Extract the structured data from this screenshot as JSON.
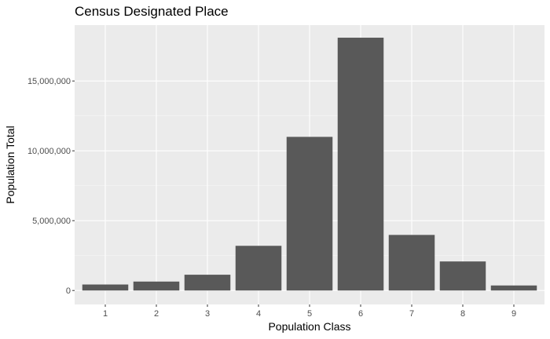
{
  "chart_data": {
    "type": "bar",
    "title": "Census Designated Place",
    "xlabel": "Population Class",
    "ylabel": "Population Total",
    "categories": [
      "1",
      "2",
      "3",
      "4",
      "5",
      "6",
      "7",
      "8",
      "9"
    ],
    "values": [
      430000,
      640000,
      1130000,
      3200000,
      11000000,
      18100000,
      3980000,
      2080000,
      360000
    ],
    "ylim": [
      -1000000,
      19000000
    ],
    "yticks": [
      0,
      5000000,
      10000000,
      15000000
    ],
    "ytick_labels": [
      "0",
      "5,000,000",
      "10,000,000",
      "15,000,000"
    ],
    "grid": true,
    "colors": {
      "bar": "#595959",
      "panel": "#ebebeb",
      "grid_major": "#ffffff",
      "grid_minor": "#f5f5f5"
    }
  }
}
